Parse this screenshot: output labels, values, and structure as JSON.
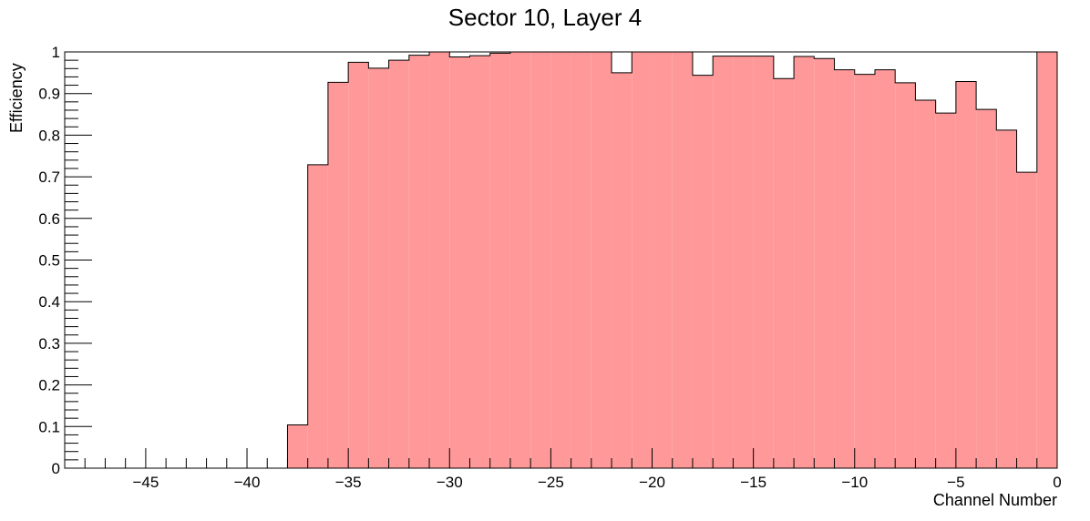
{
  "chart_data": {
    "type": "bar",
    "style": "histogram-step",
    "title": "Sector 10, Layer 4",
    "xlabel": "Channel Number",
    "ylabel": "Efficiency",
    "xlim": [
      -49,
      0
    ],
    "ylim": [
      0,
      1
    ],
    "bin_width": 1,
    "x_ticks": [
      -45,
      -40,
      -35,
      -30,
      -25,
      -20,
      -15,
      -10,
      -5,
      0
    ],
    "x_tick_labels": [
      "−45",
      "−40",
      "−35",
      "−30",
      "−25",
      "−20",
      "−15",
      "−10",
      "−5",
      "0"
    ],
    "y_ticks": [
      0,
      0.1,
      0.2,
      0.3,
      0.4,
      0.5,
      0.6,
      0.7,
      0.8,
      0.9,
      1
    ],
    "y_tick_labels": [
      "0",
      "0.1",
      "0.2",
      "0.3",
      "0.4",
      "0.5",
      "0.6",
      "0.7",
      "0.8",
      "0.9",
      "1"
    ],
    "grid": false,
    "fill_color": "#ff9999",
    "line_color": "#000000",
    "bins": [
      {
        "low": -38,
        "value": 0.104
      },
      {
        "low": -37,
        "value": 0.729
      },
      {
        "low": -36,
        "value": 0.927
      },
      {
        "low": -35,
        "value": 0.975
      },
      {
        "low": -34,
        "value": 0.961
      },
      {
        "low": -33,
        "value": 0.98
      },
      {
        "low": -32,
        "value": 0.992
      },
      {
        "low": -31,
        "value": 1.0
      },
      {
        "low": -30,
        "value": 0.988
      },
      {
        "low": -29,
        "value": 0.991
      },
      {
        "low": -28,
        "value": 0.997
      },
      {
        "low": -27,
        "value": 1.0
      },
      {
        "low": -26,
        "value": 1.0
      },
      {
        "low": -25,
        "value": 1.0
      },
      {
        "low": -24,
        "value": 1.0
      },
      {
        "low": -23,
        "value": 1.0
      },
      {
        "low": -22,
        "value": 0.95
      },
      {
        "low": -21,
        "value": 1.0
      },
      {
        "low": -20,
        "value": 1.0
      },
      {
        "low": -19,
        "value": 1.0
      },
      {
        "low": -18,
        "value": 0.944
      },
      {
        "low": -17,
        "value": 0.99
      },
      {
        "low": -16,
        "value": 0.99
      },
      {
        "low": -15,
        "value": 0.99
      },
      {
        "low": -14,
        "value": 0.936
      },
      {
        "low": -13,
        "value": 0.989
      },
      {
        "low": -12,
        "value": 0.984
      },
      {
        "low": -11,
        "value": 0.957
      },
      {
        "low": -10,
        "value": 0.946
      },
      {
        "low": -9,
        "value": 0.957
      },
      {
        "low": -8,
        "value": 0.926
      },
      {
        "low": -7,
        "value": 0.884
      },
      {
        "low": -6,
        "value": 0.853
      },
      {
        "low": -5,
        "value": 0.929
      },
      {
        "low": -4,
        "value": 0.862
      },
      {
        "low": -3,
        "value": 0.812
      },
      {
        "low": -2,
        "value": 0.711
      },
      {
        "low": -1,
        "value": 1.0
      }
    ]
  }
}
